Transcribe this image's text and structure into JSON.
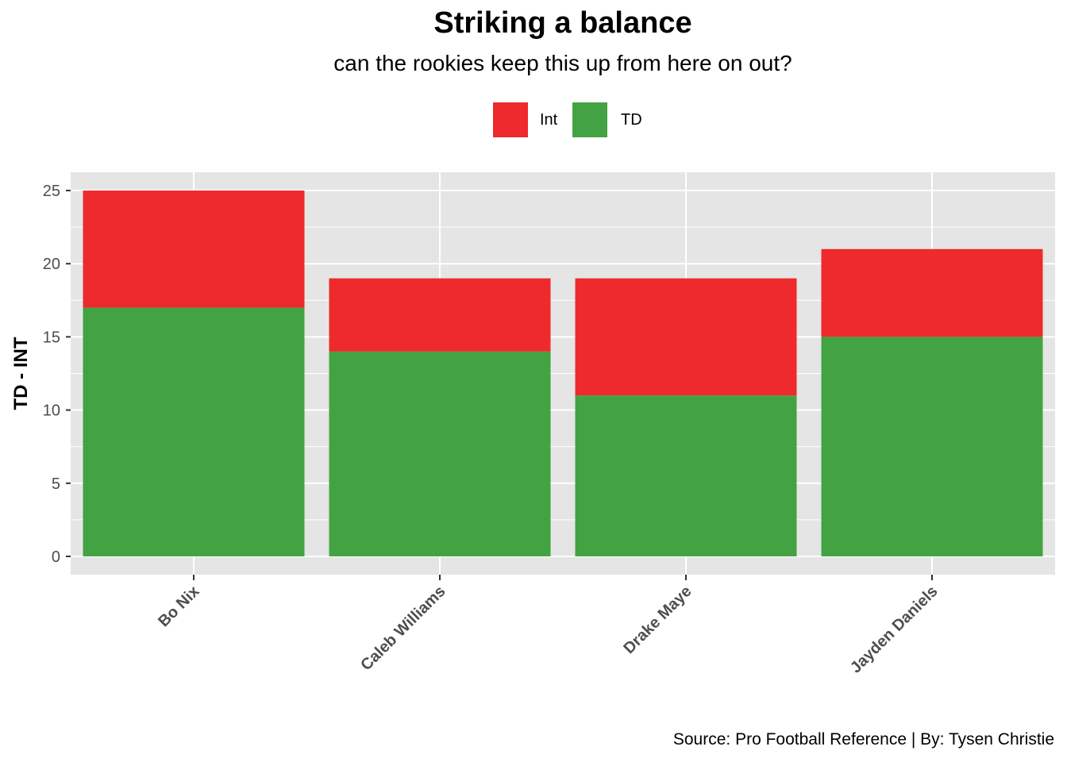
{
  "chart_data": {
    "type": "bar",
    "stacked": true,
    "title": "Striking a balance",
    "subtitle": "can the rookies keep this up from here on out?",
    "xlabel": "",
    "ylabel": "TD - INT",
    "categories": [
      "Bo Nix",
      "Caleb Williams",
      "Drake Maye",
      "Jayden Daniels"
    ],
    "series": [
      {
        "name": "TD",
        "color": "#43A342",
        "values": [
          17,
          14,
          11,
          15
        ]
      },
      {
        "name": "Int",
        "color": "#EE2A2C",
        "values": [
          8,
          5,
          8,
          6
        ]
      }
    ],
    "legend": {
      "position": "top",
      "entries": [
        {
          "label": "Int",
          "color": "#EE2A2C"
        },
        {
          "label": "TD",
          "color": "#43A342"
        }
      ]
    },
    "yticks": [
      0,
      5,
      10,
      15,
      20,
      25
    ],
    "ylim": [
      -1.25,
      26.25
    ],
    "grid": true,
    "panel_background": "#E5E5E5",
    "caption": "Source: Pro Football Reference | By: Tysen Christie"
  }
}
